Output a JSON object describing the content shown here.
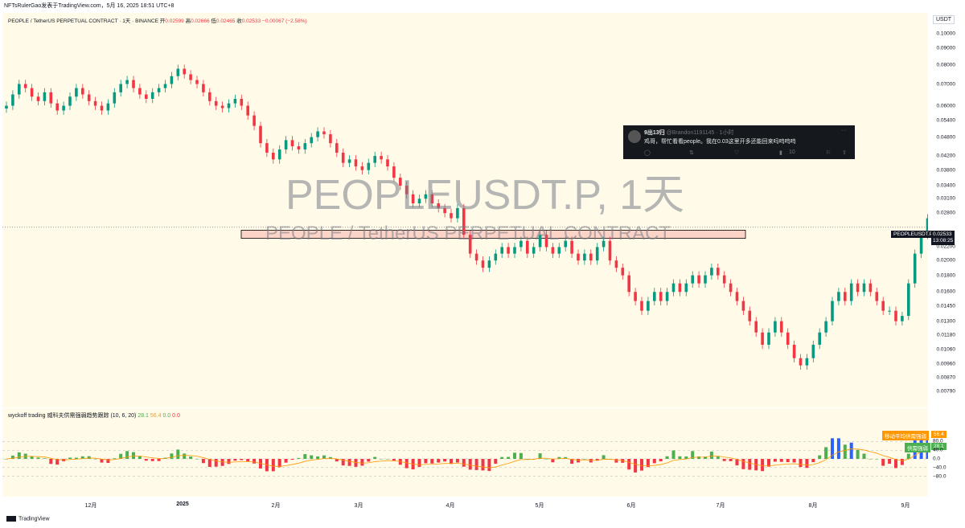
{
  "header": {
    "publisher": "NFTsRulerGao发表于TradingView.com，5月 16, 2025 18:51 UTC+8"
  },
  "legend": {
    "symbol_line": "PEOPLE / TetherUS PERPETUAL CONTRACT · 1天 · BINANCE",
    "open_label": "开",
    "open": "0.02599",
    "high_label": "高",
    "high": "0.02666",
    "low_label": "低",
    "low": "0.02465",
    "close_label": "收",
    "close": "0.02533",
    "change": "−0.00067 (−2.58%)"
  },
  "watermark": {
    "title": "PEOPLEUSDT.P, 1天",
    "subtitle": "PEOPLE / TetherUS PERPETUAL CONTRACT"
  },
  "price_axis": {
    "currency": "USDT",
    "labels": [
      "0.10000",
      "0.09000",
      "0.08000",
      "0.07000",
      "0.06000",
      "0.05400",
      "0.04800",
      "0.04200",
      "0.03800",
      "0.03400",
      "0.03100",
      "0.02800",
      "0.02200",
      "0.02000",
      "0.01800",
      "0.01600",
      "0.01450",
      "0.01300",
      "0.01180",
      "0.01060",
      "0.00960",
      "0.00870",
      "0.00790"
    ],
    "current_symbol": "PEOPLEUSDT.P",
    "current_price": "0.02533",
    "countdown": "13:08:25"
  },
  "time_axis": {
    "labels": [
      "12月",
      "2025",
      "2月",
      "3月",
      "4月",
      "5月",
      "6月",
      "7月",
      "8月",
      "9月"
    ]
  },
  "indicator": {
    "name": "wyckoff trading 威科夫供需强弱趋势跟踪 (10, 6, 20)",
    "val1": "28.1",
    "val2": "56.4",
    "val3": "0.0",
    "val4": "0.0",
    "axis_labels": [
      "80.0",
      "40.0",
      "0.0",
      "−40.0",
      "−80.0"
    ],
    "tag_ma_label": "移动平均供需强弱",
    "tag_ma_value": "56.4",
    "tag_sd_label": "供需强弱",
    "tag_sd_value": "28.1"
  },
  "tweet": {
    "name": "9出13归",
    "handle": "@Brandon1191145 · 1小时",
    "text": "鸡哥，帮忙看看people。我在0.03这里开多还能回来吗呜呜呜",
    "views": "10"
  },
  "footer": {
    "brand": "TradingView"
  },
  "chart_data": {
    "type": "candlestick",
    "symbol": "PEOPLEUSDT.P",
    "interval": "1天",
    "y_scale": "log",
    "ylim": [
      0.0075,
      0.105
    ],
    "highlight_zone": [
      0.0234,
      0.0248
    ],
    "last_price": 0.02533,
    "closes_approx": [
      0.06,
      0.065,
      0.07,
      0.068,
      0.064,
      0.062,
      0.066,
      0.061,
      0.058,
      0.06,
      0.064,
      0.068,
      0.065,
      0.062,
      0.06,
      0.058,
      0.061,
      0.066,
      0.07,
      0.072,
      0.068,
      0.065,
      0.063,
      0.066,
      0.068,
      0.07,
      0.074,
      0.078,
      0.075,
      0.072,
      0.07,
      0.066,
      0.062,
      0.06,
      0.059,
      0.061,
      0.063,
      0.06,
      0.056,
      0.052,
      0.046,
      0.043,
      0.041,
      0.044,
      0.047,
      0.045,
      0.044,
      0.046,
      0.048,
      0.05,
      0.049,
      0.046,
      0.043,
      0.04,
      0.041,
      0.039,
      0.038,
      0.04,
      0.042,
      0.041,
      0.039,
      0.036,
      0.034,
      0.032,
      0.03,
      0.031,
      0.032,
      0.03,
      0.029,
      0.028,
      0.027,
      0.029,
      0.024,
      0.021,
      0.02,
      0.019,
      0.02,
      0.021,
      0.022,
      0.021,
      0.022,
      0.023,
      0.021,
      0.022,
      0.024,
      0.022,
      0.021,
      0.022,
      0.023,
      0.021,
      0.02,
      0.021,
      0.02,
      0.022,
      0.023,
      0.02,
      0.019,
      0.018,
      0.016,
      0.015,
      0.014,
      0.015,
      0.016,
      0.015,
      0.016,
      0.017,
      0.016,
      0.017,
      0.018,
      0.017,
      0.018,
      0.019,
      0.018,
      0.017,
      0.016,
      0.015,
      0.014,
      0.013,
      0.012,
      0.011,
      0.012,
      0.013,
      0.012,
      0.011,
      0.01,
      0.0095,
      0.01,
      0.011,
      0.012,
      0.013,
      0.015,
      0.016,
      0.015,
      0.017,
      0.016,
      0.017,
      0.016,
      0.015,
      0.014,
      0.014,
      0.013,
      0.0135,
      0.017,
      0.021,
      0.024,
      0.027,
      0.034,
      0.029,
      0.0253
    ]
  }
}
